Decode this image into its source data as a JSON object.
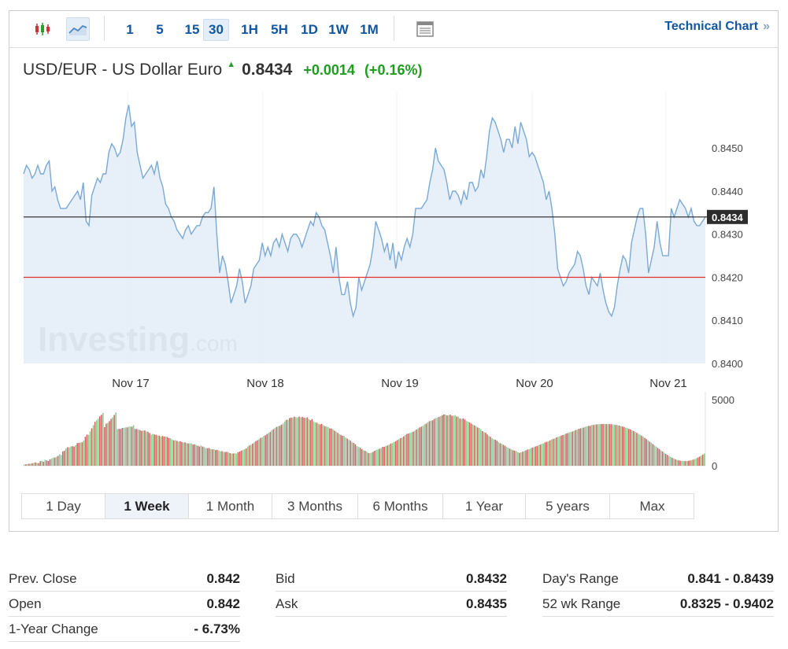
{
  "toolbar": {
    "intervals": [
      "1",
      "5",
      "15",
      "30",
      "1H",
      "5H",
      "1D",
      "1W",
      "1M"
    ],
    "active_interval": "30",
    "technical_chart_label": "Technical Chart",
    "technical_chart_chevron": "»",
    "icons": [
      "candlestick-icon",
      "area-chart-icon",
      "table-icon"
    ]
  },
  "quote": {
    "name": "USD/EUR - US Dollar Euro",
    "direction_arrow": "▲",
    "last": "0.8434",
    "change": "+0.0014",
    "change_pct": "(+0.16%)"
  },
  "watermark": {
    "brand": "Investing",
    "suffix": ".com"
  },
  "colors": {
    "line": "#7aa9d6",
    "fill": "#e3edf7",
    "prev_close": "#e03030",
    "current": "#222222",
    "vol_up": "#86cc8f",
    "vol_down": "#d06060",
    "link": "#1256a0",
    "gain": "#1e9e1e"
  },
  "chart_data": {
    "type": "area",
    "x_tick_labels": [
      "Nov 17",
      "Nov 18",
      "Nov 19",
      "Nov 20",
      "Nov 21"
    ],
    "y_tick_labels": [
      "0.8450",
      "0.8440",
      "0.8430",
      "0.8420",
      "0.8410",
      "0.8400"
    ],
    "ylim": [
      0.84,
      0.8463
    ],
    "current_value_label": "0.8434",
    "current_value": 0.8434,
    "previous_close_value": 0.842,
    "price": [
      0.8444,
      0.8446,
      0.8445,
      0.8443,
      0.8444,
      0.8446,
      0.8444,
      0.8444,
      0.8446,
      0.8447,
      0.844,
      0.8441,
      0.8438,
      0.8436,
      0.8436,
      0.8436,
      0.8437,
      0.8438,
      0.8439,
      0.844,
      0.8438,
      0.8442,
      0.8433,
      0.8432,
      0.8439,
      0.8441,
      0.8443,
      0.8442,
      0.8444,
      0.8444,
      0.8449,
      0.8451,
      0.845,
      0.8448,
      0.8449,
      0.8452,
      0.8457,
      0.846,
      0.8455,
      0.8456,
      0.8449,
      0.8446,
      0.8443,
      0.8444,
      0.8445,
      0.8446,
      0.8444,
      0.8447,
      0.8443,
      0.8441,
      0.8437,
      0.8436,
      0.8434,
      0.8433,
      0.8431,
      0.843,
      0.8429,
      0.8431,
      0.8432,
      0.843,
      0.8431,
      0.8432,
      0.8432,
      0.8434,
      0.8435,
      0.8435,
      0.8436,
      0.8441,
      0.843,
      0.8421,
      0.8425,
      0.8423,
      0.8419,
      0.8414,
      0.8416,
      0.8418,
      0.8422,
      0.8419,
      0.8414,
      0.8416,
      0.8418,
      0.8422,
      0.8423,
      0.8424,
      0.8428,
      0.8425,
      0.8427,
      0.8425,
      0.8428,
      0.8429,
      0.8427,
      0.843,
      0.8428,
      0.8426,
      0.8429,
      0.843,
      0.843,
      0.8429,
      0.8427,
      0.8429,
      0.8431,
      0.8433,
      0.8432,
      0.8435,
      0.8434,
      0.8432,
      0.8431,
      0.8428,
      0.8425,
      0.8421,
      0.8427,
      0.842,
      0.8416,
      0.8416,
      0.8419,
      0.8414,
      0.8411,
      0.8413,
      0.842,
      0.8417,
      0.8419,
      0.8421,
      0.8423,
      0.8427,
      0.8433,
      0.8431,
      0.8429,
      0.8426,
      0.8428,
      0.8424,
      0.8428,
      0.8422,
      0.8426,
      0.8424,
      0.8427,
      0.8429,
      0.8427,
      0.843,
      0.8436,
      0.8436,
      0.8436,
      0.8437,
      0.8438,
      0.8442,
      0.8445,
      0.845,
      0.8447,
      0.8446,
      0.8445,
      0.8442,
      0.8438,
      0.844,
      0.844,
      0.8439,
      0.8437,
      0.844,
      0.8438,
      0.8442,
      0.8442,
      0.844,
      0.8441,
      0.8445,
      0.8443,
      0.8448,
      0.8454,
      0.8457,
      0.8456,
      0.8454,
      0.8452,
      0.8449,
      0.8452,
      0.8452,
      0.845,
      0.8455,
      0.8451,
      0.8456,
      0.8454,
      0.8452,
      0.8448,
      0.8449,
      0.8448,
      0.8446,
      0.8444,
      0.8442,
      0.8438,
      0.844,
      0.8436,
      0.843,
      0.8422,
      0.842,
      0.8418,
      0.8419,
      0.8421,
      0.8422,
      0.8423,
      0.8426,
      0.8425,
      0.8422,
      0.8418,
      0.8416,
      0.842,
      0.8419,
      0.8418,
      0.8421,
      0.8417,
      0.8414,
      0.8412,
      0.8411,
      0.8413,
      0.8418,
      0.8422,
      0.8425,
      0.8424,
      0.8421,
      0.8428,
      0.8431,
      0.8434,
      0.8436,
      0.8436,
      0.843,
      0.8421,
      0.8424,
      0.8427,
      0.8433,
      0.8428,
      0.8425,
      0.8425,
      0.8425,
      0.8436,
      0.8434,
      0.8436,
      0.8438,
      0.8437,
      0.8436,
      0.8434,
      0.8436,
      0.8433,
      0.8432,
      0.8432,
      0.8433,
      0.8434
    ],
    "volume_tick_labels": [
      "5000",
      "0"
    ],
    "volume_max": 5000,
    "volume": [
      90,
      103,
      129,
      146,
      159,
      186,
      215,
      253,
      211,
      199,
      340,
      359,
      302,
      452,
      396,
      356,
      485,
      544,
      612,
      620,
      673,
      746,
      872,
      808,
      1084,
      1134,
      1307,
      1398,
      1389,
      1457,
      1476,
      1445,
      1546,
      1707,
      1728,
      1756,
      1776,
      1909,
      2191,
      2355,
      2335,
      2598,
      2834,
      3069,
      3321,
      3439,
      3562,
      3739,
      3849,
      3990,
      2919,
      3185,
      3244,
      3376,
      3543,
      3653,
      3837,
      4032,
      2768,
      2784,
      2788,
      2855,
      2860,
      2897,
      2899,
      2953,
      2956,
      2951,
      3057,
      2780,
      2778,
      2741,
      2699,
      2637,
      2666,
      2674,
      2590,
      2564,
      2471,
      2354,
      2404,
      2365,
      2325,
      2289,
      2278,
      2198,
      2248,
      2206,
      2217,
      2171,
      2090,
      2075,
      1988,
      1924,
      1931,
      1878,
      1830,
      1854,
      1788,
      1758,
      1766,
      1707,
      1687,
      1692,
      1689,
      1602,
      1612,
      1562,
      1520,
      1460,
      1537,
      1452,
      1406,
      1333,
      1324,
      1341,
      1270,
      1240,
      1252,
      1185,
      1205,
      1146,
      1093,
      1099,
      1048,
      1040,
      1052,
      1011,
      954,
      910,
      931,
      934,
      904,
      1011,
      1071,
      1149,
      1181,
      1247,
      1314,
      1448,
      1535,
      1583,
      1673,
      1765,
      1854,
      1931,
      2008,
      2093,
      2150,
      2248,
      2302,
      2396,
      2478,
      2556,
      2689,
      2769,
      2852,
      2936,
      2977,
      3015,
      3105,
      3198,
      3349,
      3468,
      3478,
      3601,
      3645,
      3639,
      3713,
      3665,
      3657,
      3717,
      3653,
      3690,
      3630,
      3621,
      3656,
      3536,
      3441,
      3534,
      3353,
      3271,
      3251,
      3173,
      3133,
      3166,
      3071,
      2985,
      2967,
      2924,
      2820,
      2816,
      2748,
      2649,
      2585,
      2488,
      2397,
      2334,
      2264,
      2243,
      2129,
      2049,
      1956,
      1890,
      1765,
      1728,
      1614,
      1476,
      1418,
      1351,
      1259,
      1175,
      1124,
      1069,
      962,
      965,
      997,
      1047,
      1132,
      1203,
      1240,
      1286,
      1332,
      1427,
      1435,
      1501,
      1527,
      1594,
      1679,
      1719,
      1784,
      1854,
      1940,
      1998,
      2084,
      2130,
      2221,
      2325,
      2406,
      2435,
      2483,
      2530,
      2580,
      2658,
      2743,
      2829,
      2897,
      2950,
      3017,
      3128,
      3190,
      3286,
      3367,
      3399,
      3440,
      3542,
      3614,
      3656,
      3693,
      3750,
      3822,
      3878,
      3862,
      3806,
      3835,
      3863,
      3779,
      3791,
      3828,
      3722,
      3703,
      3578,
      3539,
      3581,
      3498,
      3386,
      3339,
      3279,
      3190,
      3113,
      3060,
      2988,
      2895,
      2858,
      2743,
      2619,
      2541,
      2493,
      2367,
      2258,
      2187,
      2074,
      1999,
      1965,
      1893,
      1793,
      1702,
      1659,
      1584,
      1514,
      1424,
      1359,
      1294,
      1235,
      1175,
      1138,
      1108,
      1017,
      977,
      1011,
      1057,
      1120,
      1161,
      1226,
      1252,
      1304,
      1372,
      1403,
      1461,
      1500,
      1550,
      1603,
      1655,
      1698,
      1765,
      1810,
      1853,
      1914,
      1985,
      2030,
      2067,
      2136,
      2187,
      2224,
      2280,
      2325,
      2359,
      2426,
      2462,
      2525,
      2550,
      2587,
      2634,
      2699,
      2735,
      2794,
      2826,
      2883,
      2894,
      2950,
      2983,
      3012,
      3019,
      3069,
      3084,
      3117,
      3127,
      3135,
      3149,
      3154,
      3157,
      3158,
      3150,
      3148,
      3149,
      3141,
      3124,
      3105,
      3087,
      3070,
      3038,
      3004,
      2971,
      2928,
      2888,
      2844,
      2793,
      2744,
      2686,
      2624,
      2560,
      2489,
      2419,
      2346,
      2273,
      2190,
      2103,
      2014,
      1921,
      1828,
      1736,
      1638,
      1543,
      1450,
      1349,
      1261,
      1163,
      1075,
      985,
      901,
      818,
      740,
      668,
      604,
      542,
      490,
      447,
      411,
      383,
      364,
      351,
      349,
      354,
      368,
      391,
      421,
      459,
      504,
      557,
      619,
      687,
      761,
      840,
      924
    ],
    "volume_up": [
      1,
      0,
      1,
      0,
      1,
      0,
      1,
      0,
      1,
      0,
      0,
      1,
      0,
      1,
      0,
      0,
      0,
      1,
      1,
      0,
      1,
      0,
      1,
      1,
      0,
      0,
      1,
      0,
      1,
      1,
      0,
      0,
      1,
      0,
      0,
      1,
      0,
      1,
      0,
      0,
      1,
      1,
      0,
      1,
      0,
      1,
      1,
      0,
      0,
      1,
      0,
      0,
      1,
      0,
      0,
      1,
      0,
      1,
      1,
      0,
      0,
      0,
      1,
      1,
      0,
      1,
      1,
      0,
      1,
      0,
      0,
      1,
      0,
      0,
      1,
      0,
      1,
      0,
      0,
      1,
      1,
      0,
      0,
      1,
      0,
      1,
      0,
      0,
      1,
      0,
      0,
      1,
      1,
      0,
      1,
      0,
      1,
      0,
      0,
      1,
      0,
      1,
      0,
      1,
      1,
      0,
      0,
      1,
      0,
      0,
      1,
      0,
      1,
      1,
      0,
      0,
      1,
      0,
      1,
      0,
      0,
      1,
      1,
      0,
      1,
      0,
      0,
      1,
      0,
      1,
      0,
      1,
      1,
      0,
      0,
      0,
      1,
      1,
      0,
      1,
      0,
      1,
      0,
      1,
      0,
      0,
      1,
      0,
      1,
      1,
      0,
      0,
      1,
      0,
      1,
      0,
      1,
      0,
      1,
      0,
      0,
      1,
      1,
      0,
      1,
      0,
      0,
      1,
      0,
      1,
      1,
      0,
      1,
      0,
      0,
      1,
      0,
      1,
      0,
      0,
      1,
      1,
      0,
      1,
      0,
      0,
      1,
      0,
      1,
      1,
      0,
      0,
      1,
      0,
      1,
      0,
      1,
      0,
      0,
      1,
      1,
      0,
      1,
      0,
      1,
      0,
      0,
      1,
      1,
      0,
      0,
      1,
      0,
      1,
      0,
      1,
      1,
      0,
      0,
      1,
      1,
      0,
      1,
      0,
      0,
      1,
      0,
      1,
      0,
      1,
      1,
      0,
      0,
      1,
      0,
      1,
      0,
      1,
      0,
      0,
      1,
      1,
      0,
      1,
      0,
      1,
      0,
      0,
      1,
      1,
      0,
      1,
      0,
      1,
      0,
      0,
      1,
      1,
      0,
      1,
      0,
      0,
      1,
      0,
      1,
      0,
      0,
      1,
      1,
      0,
      1,
      0,
      1,
      0,
      0,
      1,
      1,
      0,
      0,
      1,
      0,
      1,
      0,
      1,
      1,
      0,
      1,
      0,
      0,
      1,
      0,
      1,
      1,
      0,
      0,
      1,
      0,
      1,
      0,
      0,
      1,
      1,
      0,
      1,
      0,
      0,
      1,
      1,
      0,
      1,
      0,
      1,
      0,
      0,
      1,
      1,
      0,
      1,
      0,
      0,
      1,
      0,
      1,
      1,
      0,
      0,
      1,
      0,
      1,
      0,
      1,
      0,
      1,
      1,
      0,
      0,
      1,
      0,
      0,
      1,
      1,
      0,
      1,
      0,
      1,
      0,
      0,
      1,
      0,
      1,
      1,
      0,
      0,
      1,
      0,
      1,
      0,
      1,
      1,
      0,
      0,
      1,
      0,
      1,
      0,
      0,
      1,
      1,
      0,
      1,
      0,
      1,
      0,
      0,
      1,
      1,
      0,
      0,
      1,
      0,
      1,
      0,
      1,
      1,
      0,
      1,
      0,
      0,
      1,
      0,
      1,
      0,
      1,
      1,
      0,
      0,
      1,
      0,
      1,
      0,
      0,
      1,
      1,
      0,
      1,
      0,
      1,
      0,
      0,
      1,
      1,
      0,
      1,
      0,
      0,
      1,
      0,
      1,
      1,
      0,
      0,
      1,
      0,
      1,
      0,
      1,
      0,
      1,
      1,
      0,
      0,
      1
    ]
  },
  "periods": [
    "1 Day",
    "1 Week",
    "1 Month",
    "3 Months",
    "6 Months",
    "1 Year",
    "5 years",
    "Max"
  ],
  "active_period": "1 Week",
  "stats": [
    [
      {
        "label": "Prev. Close",
        "value": "0.842"
      },
      {
        "label": "Open",
        "value": "0.842"
      },
      {
        "label": "1-Year Change",
        "value": "- 6.73%"
      }
    ],
    [
      {
        "label": "Bid",
        "value": "0.8432"
      },
      {
        "label": "Ask",
        "value": "0.8435"
      }
    ],
    [
      {
        "label": "Day's Range",
        "value": "0.841 - 0.8439"
      },
      {
        "label": "52 wk Range",
        "value": "0.8325 - 0.9402"
      }
    ]
  ]
}
